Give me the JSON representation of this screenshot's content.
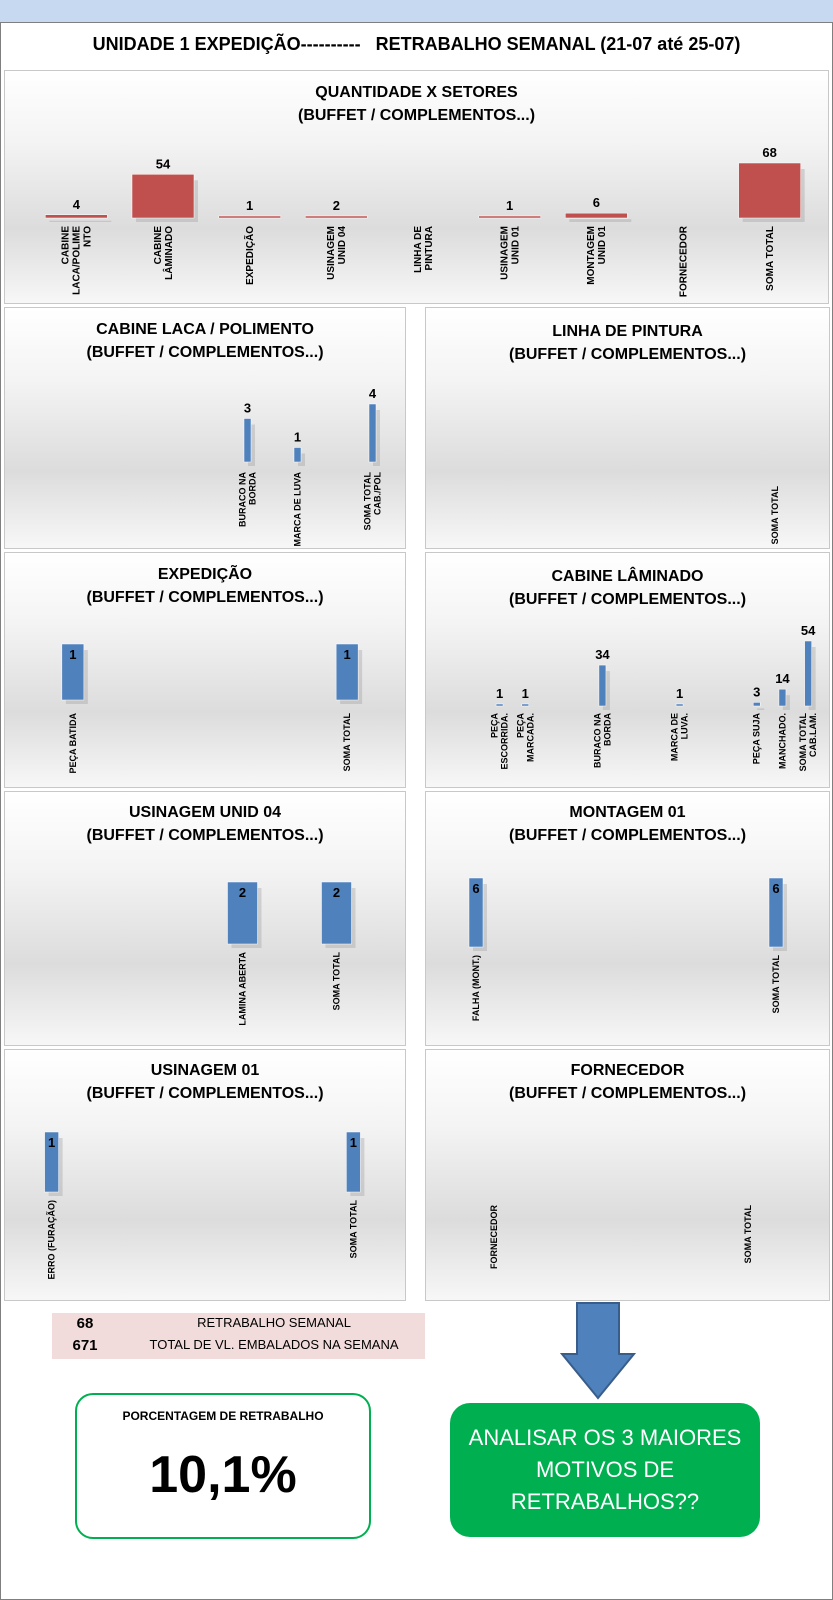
{
  "main_title": "UNIDADE 1 EXPEDIÇÃO----------   RETRABALHO SEMANAL (21-07 até 25-07)",
  "colors": {
    "red": "#c0504d",
    "blue": "#4f81bd",
    "green": "#00b050",
    "summary_bg": "#f2dcdb"
  },
  "chart_data": [
    {
      "type": "bar",
      "title": "QUANTIDADE X SETORES",
      "subtitle": "(BUFFET / COMPLEMENTOS...)",
      "categories": [
        "CABINE LACA/POLIMENTO",
        "CABINE LÂMINADO",
        "EXPEDIÇÃO",
        "USINAGEM UNID 04",
        "LINHA DE PINTURA",
        "USINAGEM UNID 01",
        "MONTAGEM UNID 01",
        "FORNECEDOR",
        "SOMA TOTAL"
      ],
      "category_lines": [
        [
          "CABINE",
          "LACA/POLIME",
          "NTO"
        ],
        [
          "CABINE",
          "LÂMINADO"
        ],
        [
          "EXPEDIÇÃO"
        ],
        [
          "USINAGEM",
          "UNID 04"
        ],
        [
          "LINHA DE",
          "PINTURA"
        ],
        [
          "USINAGEM",
          "UNID 01"
        ],
        [
          "MONTAGEM",
          "UNID 01"
        ],
        [
          "FORNECEDOR"
        ],
        [
          "SOMA TOTAL"
        ]
      ],
      "values": [
        4,
        54,
        1,
        2,
        null,
        1,
        6,
        null,
        68
      ],
      "labels": [
        "4",
        "54",
        "1",
        "2",
        "",
        "1",
        "6",
        "",
        "68"
      ],
      "color": "#c0504d"
    },
    {
      "type": "bar",
      "title": "CABINE LACA / POLIMENTO",
      "subtitle": "(BUFFET / COMPLEMENTOS...)",
      "categories": [
        "",
        "",
        "",
        "BURACO NA BORDA",
        "",
        "MARCA DE LUVA",
        "",
        "",
        "SOMA TOTAL CAB./POL"
      ],
      "category_lines": [
        [],
        [],
        [],
        [
          "BURACO NA",
          "BORDA"
        ],
        [],
        [
          "MARCA DE LUVA"
        ],
        [],
        [],
        [
          "SOMA TOTAL",
          "CAB./POL"
        ]
      ],
      "values": [
        null,
        null,
        null,
        3,
        null,
        1,
        null,
        null,
        4
      ],
      "labels": [
        "",
        "",
        "",
        "3",
        "",
        "1",
        "",
        "",
        "4"
      ],
      "color": "#4f81bd"
    },
    {
      "type": "bar",
      "title": "LINHA DE PINTURA",
      "subtitle": "(BUFFET / COMPLEMENTOS...)",
      "categories": [
        "",
        "",
        "",
        "",
        "",
        "",
        "",
        "SOMA TOTAL"
      ],
      "category_lines": [
        [],
        [],
        [],
        [],
        [],
        [],
        [],
        [
          "SOMA TOTAL"
        ]
      ],
      "values": [
        null,
        null,
        null,
        null,
        null,
        null,
        null,
        null
      ],
      "labels": [
        "",
        "",
        "",
        "",
        "",
        "",
        "",
        ""
      ],
      "color": "#4f81bd"
    },
    {
      "type": "bar",
      "title": "EXPEDIÇÃO",
      "subtitle": "(BUFFET / COMPLEMENTOS...)",
      "categories": [
        "PEÇA BATIDA",
        "",
        "",
        "",
        "",
        "",
        "SOMA TOTAL"
      ],
      "category_lines": [
        [
          "PEÇA BATIDA"
        ],
        [],
        [],
        [],
        [],
        [],
        [
          "SOMA TOTAL"
        ]
      ],
      "values": [
        1,
        null,
        null,
        null,
        null,
        null,
        1
      ],
      "labels": [
        "1",
        "",
        "",
        "",
        "",
        "",
        "1"
      ],
      "color": "#4f81bd"
    },
    {
      "type": "bar",
      "title": "CABINE LÂMINADO",
      "subtitle": "(BUFFET / COMPLEMENTOS...)",
      "categories": [
        "",
        "PEÇA ESCORRIDA",
        "PEÇA MARCADA",
        "",
        "",
        "BURACO NA BORDA",
        "",
        "",
        "MARCA DE LUVA",
        "",
        "",
        "PEÇA SUJA",
        "MANCHADO",
        "SOMA TOTAL CAB.LAM."
      ],
      "category_lines": [
        [],
        [
          "PEÇA",
          "ESCORRIDA."
        ],
        [
          "PEÇA",
          "MARCADA."
        ],
        [],
        [],
        [
          "BURACO NA",
          "BORDA"
        ],
        [],
        [],
        [
          "MARCA DE",
          "LUVA."
        ],
        [],
        [],
        [
          "PEÇA SUJA"
        ],
        [
          "MANCHADO."
        ],
        [
          "SOMA TOTAL",
          "CAB.LAM."
        ]
      ],
      "values": [
        null,
        1,
        1,
        null,
        null,
        34,
        null,
        null,
        1,
        null,
        null,
        3,
        14,
        54
      ],
      "labels": [
        "",
        "1",
        "1",
        "",
        "",
        "34",
        "",
        "",
        "1",
        "",
        "",
        "3",
        "14",
        "54"
      ],
      "color": "#4f81bd"
    },
    {
      "type": "bar",
      "title": "USINAGEM UNID 04",
      "subtitle": "(BUFFET / COMPLEMENTOS...)",
      "categories": [
        "",
        "",
        "LAMINA ABERTA",
        "",
        "SOMA TOTAL"
      ],
      "category_lines": [
        [],
        [],
        [
          "LAMINA ABERTA"
        ],
        [],
        [
          "SOMA TOTAL"
        ]
      ],
      "values": [
        null,
        null,
        2,
        null,
        2
      ],
      "labels": [
        "",
        "",
        "2",
        "",
        "2"
      ],
      "color": "#4f81bd"
    },
    {
      "type": "bar",
      "title": "MONTAGEM 01",
      "subtitle": "(BUFFET / COMPLEMENTOS...)",
      "categories": [
        "FALHA (MONT.)",
        "",
        "",
        "",
        "",
        "",
        "",
        "",
        "",
        "",
        "SOMA TOTAL"
      ],
      "category_lines": [
        [
          "FALHA (MONT.)"
        ],
        [],
        [],
        [],
        [],
        [],
        [],
        [],
        [],
        [],
        [
          "SOMA TOTAL"
        ]
      ],
      "values": [
        6,
        null,
        null,
        null,
        null,
        null,
        null,
        null,
        null,
        null,
        6
      ],
      "labels": [
        "6",
        "",
        "",
        "",
        "",
        "",
        "",
        "",
        "",
        "",
        "6"
      ],
      "color": "#4f81bd"
    },
    {
      "type": "bar",
      "title": "USINAGEM 01",
      "subtitle": "(BUFFET / COMPLEMENTOS...)",
      "categories": [
        "ERRO (FURAÇÃO)",
        "",
        "",
        "",
        "",
        "",
        "",
        "",
        "",
        "",
        "",
        "",
        "",
        "SOMA TOTAL"
      ],
      "category_lines": [
        [
          "ERRO (FURAÇÃO)"
        ],
        [],
        [],
        [],
        [],
        [],
        [],
        [],
        [],
        [],
        [],
        [],
        [],
        [
          "SOMA TOTAL"
        ]
      ],
      "values": [
        1,
        null,
        null,
        null,
        null,
        null,
        null,
        null,
        null,
        null,
        null,
        null,
        null,
        1
      ],
      "labels": [
        "1",
        "",
        "",
        "",
        "",
        "",
        "",
        "",
        "",
        "",
        "",
        "",
        "",
        "1"
      ],
      "color": "#4f81bd"
    },
    {
      "type": "bar",
      "title": "FORNECEDOR",
      "subtitle": "(BUFFET / COMPLEMENTOS...)",
      "categories": [
        "FORNECEDOR",
        "",
        "",
        "",
        "",
        "",
        "",
        "SOMA TOTAL"
      ],
      "category_lines": [
        [
          "FORNECEDOR"
        ],
        [],
        [],
        [],
        [],
        [],
        [],
        [
          "SOMA TOTAL"
        ]
      ],
      "values": [
        null,
        null,
        null,
        null,
        null,
        null,
        null,
        null
      ],
      "labels": [
        "",
        "",
        "",
        "",
        "",
        "",
        "",
        ""
      ],
      "color": "#4f81bd"
    }
  ],
  "summary": {
    "rows": [
      {
        "value": "68",
        "label": "RETRABALHO SEMANAL"
      },
      {
        "value": "671",
        "label": "TOTAL DE VL. EMBALADOS NA SEMANA"
      }
    ]
  },
  "percentage": {
    "label": "PORCENTAGEM DE RETRABALHO",
    "value": "10,1%"
  },
  "cta": {
    "text": "ANALISAR OS 3 MAIORES MOTIVOS DE RETRABALHOS??"
  }
}
